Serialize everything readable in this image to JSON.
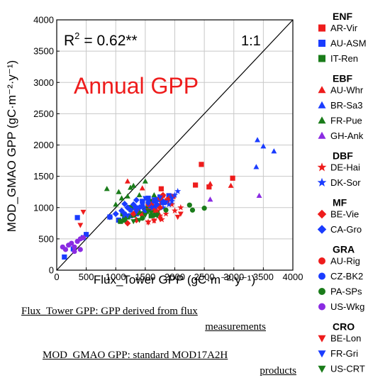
{
  "chart_data": {
    "type": "scatter",
    "title": "Annual GPP",
    "xlabel": "Flux_Tower GPP (gC·m⁻²·y⁻¹)",
    "ylabel": "MOD_GMAO GPP (gC·m⁻²·y⁻¹)",
    "xlim": [
      0,
      4000
    ],
    "ylim": [
      0,
      4000
    ],
    "x_ticks": [
      "0",
      "500",
      "1000",
      "1500",
      "2000",
      "2500",
      "3000",
      "3500",
      "4000"
    ],
    "y_ticks": [
      "0",
      "500",
      "1000",
      "1500",
      "2000",
      "2500",
      "3000",
      "3500",
      "4000"
    ],
    "grid": true,
    "r2_label": "R",
    "r2_sup": "2",
    "r2_value": "= 0.62**",
    "one_to_one_label": "1:1",
    "legend_position": "right",
    "groups": [
      {
        "name": "ENF",
        "series": [
          {
            "name": "AR-Vir",
            "marker": "square",
            "color": "#ee1c1c",
            "points": [
              [
                2450,
                1690
              ],
              [
                2980,
                1470
              ],
              [
                2580,
                1330
              ],
              [
                2350,
                1360
              ],
              [
                1770,
                1300
              ],
              [
                1970,
                1180
              ],
              [
                1870,
                1110
              ],
              [
                1650,
                1100
              ],
              [
                1780,
                1080
              ]
            ]
          },
          {
            "name": "AU-ASM",
            "marker": "square",
            "color": "#1a3cff",
            "points": [
              [
                130,
                210
              ],
              [
                280,
                340
              ],
              [
                450,
                520
              ],
              [
                500,
                570
              ],
              [
                350,
                840
              ],
              [
                900,
                850
              ],
              [
                1050,
                800
              ],
              [
                1150,
                820
              ],
              [
                1250,
                870
              ],
              [
                1350,
                900
              ],
              [
                1500,
                980
              ],
              [
                1650,
                1010
              ],
              [
                1800,
                1080
              ],
              [
                1550,
                1150
              ],
              [
                1450,
                1100
              ],
              [
                1750,
                1170
              ],
              [
                1700,
                1130
              ],
              [
                1600,
                960
              ],
              [
                1900,
                1190
              ],
              [
                1300,
                1000
              ]
            ]
          },
          {
            "name": "IT-Ren",
            "marker": "square",
            "color": "#1a7c1a",
            "points": [
              [
                1080,
                780
              ],
              [
                1150,
                800
              ],
              [
                1200,
                850
              ],
              [
                1300,
                880
              ],
              [
                1380,
                920
              ],
              [
                1500,
                950
              ],
              [
                1550,
                1000
              ],
              [
                1600,
                870
              ],
              [
                1700,
                920
              ],
              [
                1250,
                1000
              ],
              [
                1450,
                900
              ],
              [
                1120,
                900
              ]
            ]
          }
        ]
      },
      {
        "name": "EBF",
        "series": [
          {
            "name": "AU-Whr",
            "marker": "triangle-up",
            "color": "#ee1c1c",
            "points": [
              [
                1200,
                1420
              ],
              [
                2950,
                1350
              ],
              [
                2600,
                1380
              ],
              [
                1450,
                1310
              ]
            ]
          },
          {
            "name": "BR-Sa3",
            "marker": "triangle-up",
            "color": "#1a3cff",
            "points": [
              [
                3400,
                2080
              ],
              [
                3500,
                1980
              ],
              [
                3680,
                1900
              ],
              [
                3380,
                1650
              ]
            ]
          },
          {
            "name": "FR-Pue",
            "marker": "triangle-up",
            "color": "#1a7c1a",
            "points": [
              [
                850,
                1300
              ],
              [
                1000,
                1050
              ],
              [
                1050,
                1250
              ],
              [
                1200,
                1180
              ],
              [
                1250,
                1320
              ],
              [
                1400,
                1200
              ],
              [
                1500,
                1420
              ],
              [
                1300,
                1350
              ],
              [
                1100,
                1150
              ],
              [
                1600,
                1100
              ],
              [
                1650,
                1200
              ]
            ]
          },
          {
            "name": "GH-Ank",
            "marker": "triangle-up",
            "color": "#8a2be2",
            "points": [
              [
                3430,
                1190
              ],
              [
                2600,
                1130
              ]
            ]
          }
        ]
      },
      {
        "name": "DBF",
        "series": [
          {
            "name": "DE-Hai",
            "marker": "star",
            "color": "#ee1c1c",
            "points": [
              [
                1550,
                770
              ],
              [
                1650,
                790
              ],
              [
                1780,
                810
              ],
              [
                1750,
                870
              ],
              [
                1850,
                900
              ],
              [
                2000,
                950
              ],
              [
                2100,
                1000
              ],
              [
                1950,
                1050
              ],
              [
                1700,
                950
              ],
              [
                1900,
                1150
              ]
            ]
          },
          {
            "name": "DK-Sor",
            "marker": "star",
            "color": "#1a3cff",
            "points": [
              [
                1800,
                1000
              ],
              [
                1900,
                1050
              ],
              [
                1950,
                1150
              ],
              [
                2000,
                1200
              ],
              [
                2050,
                1260
              ],
              [
                1950,
                1100
              ]
            ]
          }
        ]
      },
      {
        "name": "MF",
        "series": [
          {
            "name": "BE-Vie",
            "marker": "diamond",
            "color": "#ee1c1c",
            "points": [
              [
                1200,
                750
              ],
              [
                1350,
                800
              ],
              [
                1450,
                880
              ],
              [
                1650,
                950
              ],
              [
                1750,
                1000
              ],
              [
                1800,
                1200
              ],
              [
                1600,
                1050
              ],
              [
                1300,
                900
              ]
            ]
          },
          {
            "name": "CA-Gro",
            "marker": "diamond",
            "color": "#1a3cff",
            "points": [
              [
                900,
                850
              ],
              [
                1000,
                900
              ],
              [
                1100,
                950
              ],
              [
                1200,
                1000
              ],
              [
                1300,
                1050
              ],
              [
                1400,
                1000
              ],
              [
                1500,
                950
              ],
              [
                1600,
                1000
              ],
              [
                1800,
                1100
              ],
              [
                1700,
                1050
              ],
              [
                1350,
                1120
              ],
              [
                1150,
                1060
              ]
            ]
          }
        ]
      },
      {
        "name": "GRA",
        "series": [
          {
            "name": "AU-Rig",
            "marker": "circle",
            "color": "#ee1c1c",
            "points": [
              [
                1350,
                950
              ],
              [
                1550,
                1050
              ],
              [
                1750,
                1150
              ],
              [
                1800,
                1190
              ]
            ]
          },
          {
            "name": "CZ-BK2",
            "marker": "circle",
            "color": "#1a3cff",
            "points": [
              [
                1150,
                900
              ],
              [
                1250,
                960
              ],
              [
                1350,
                1000
              ],
              [
                1450,
                1030
              ],
              [
                1550,
                1080
              ],
              [
                1650,
                1100
              ]
            ]
          },
          {
            "name": "PA-SPs",
            "marker": "circle",
            "color": "#1a7c1a",
            "points": [
              [
                2250,
                1040
              ],
              [
                2300,
                960
              ],
              [
                2500,
                990
              ],
              [
                1850,
                960
              ],
              [
                1650,
                880
              ],
              [
                1450,
                830
              ]
            ]
          },
          {
            "name": "US-Wkg",
            "marker": "circle",
            "color": "#8a2be2",
            "points": [
              [
                100,
                370
              ],
              [
                150,
                330
              ],
              [
                200,
                400
              ],
              [
                250,
                430
              ],
              [
                300,
                370
              ],
              [
                350,
                460
              ],
              [
                400,
                500
              ],
              [
                450,
                520
              ],
              [
                400,
                330
              ],
              [
                300,
                300
              ]
            ]
          }
        ]
      },
      {
        "name": "CRO",
        "series": [
          {
            "name": "BE-Lon",
            "marker": "triangle-down",
            "color": "#ee1c1c",
            "points": [
              [
                450,
                930
              ],
              [
                400,
                720
              ],
              [
                1550,
                760
              ],
              [
                1650,
                790
              ],
              [
                1550,
                950
              ],
              [
                2050,
                850
              ],
              [
                2100,
                900
              ],
              [
                1750,
                820
              ]
            ]
          },
          {
            "name": "FR-Gri",
            "marker": "triangle-down",
            "color": "#1a3cff",
            "points": [
              [
                1200,
                870
              ],
              [
                1350,
                930
              ],
              [
                1450,
                1000
              ],
              [
                1550,
                1060
              ],
              [
                1650,
                1130
              ],
              [
                1750,
                1160
              ],
              [
                1850,
                1080
              ],
              [
                1500,
                1150
              ]
            ]
          },
          {
            "name": "US-CRT",
            "marker": "triangle-down",
            "color": "#1a7c1a",
            "points": [
              [
                1300,
                780
              ],
              [
                1400,
                800
              ],
              [
                1500,
                880
              ],
              [
                1600,
                920
              ],
              [
                1700,
                870
              ],
              [
                1550,
                940
              ]
            ]
          }
        ]
      }
    ]
  },
  "footnotes": {
    "line1a": "Flux_Tower GPP: GPP derived from flux",
    "line1b": "measurements",
    "line2a": "MOD_GMAO GPP: standard MOD17A2H",
    "line2b": "products"
  }
}
